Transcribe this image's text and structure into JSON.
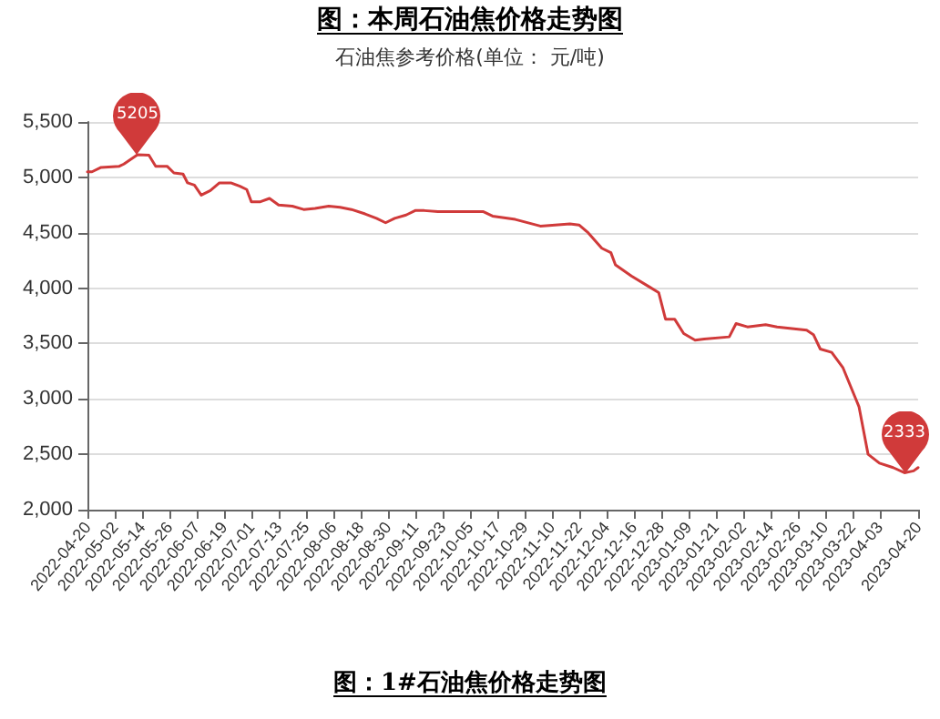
{
  "chart_data": {
    "type": "line",
    "title": "图：本周石油焦价格走势图",
    "subtitle": "石油焦参考价格(单位： 元/吨)",
    "x": [
      "2022-04-20",
      "2022-04-22",
      "2022-04-26",
      "2022-05-04",
      "2022-05-06",
      "2022-05-12",
      "2022-05-17",
      "2022-05-20",
      "2022-05-25",
      "2022-05-28",
      "2022-06-01",
      "2022-06-03",
      "2022-06-06",
      "2022-06-09",
      "2022-06-13",
      "2022-06-17",
      "2022-06-22",
      "2022-06-26",
      "2022-06-29",
      "2022-07-01",
      "2022-07-05",
      "2022-07-09",
      "2022-07-13",
      "2022-07-19",
      "2022-07-24",
      "2022-07-29",
      "2022-08-04",
      "2022-08-09",
      "2022-08-14",
      "2022-08-20",
      "2022-08-25",
      "2022-08-29",
      "2022-09-02",
      "2022-09-07",
      "2022-09-11",
      "2022-09-15",
      "2022-09-21",
      "2022-10-01",
      "2022-10-11",
      "2022-10-15",
      "2022-10-25",
      "2022-11-05",
      "2022-11-18",
      "2022-11-22",
      "2022-11-26",
      "2022-12-02",
      "2022-12-06",
      "2022-12-08",
      "2022-12-15",
      "2022-12-23",
      "2022-12-27",
      "2022-12-30",
      "2023-01-03",
      "2023-01-07",
      "2023-01-12",
      "2023-01-16",
      "2023-01-27",
      "2023-01-30",
      "2023-02-04",
      "2023-02-12",
      "2023-02-17",
      "2023-03-02",
      "2023-03-05",
      "2023-03-08",
      "2023-03-13",
      "2023-03-18",
      "2023-03-24",
      "2023-03-25",
      "2023-03-29",
      "2023-04-03",
      "2023-04-09",
      "2023-04-14",
      "2023-04-18",
      "2023-04-20"
    ],
    "series": [
      {
        "color": "#d03a3a",
        "values": [
          5050,
          5050,
          5090,
          5100,
          5120,
          5205,
          5200,
          5100,
          5100,
          5040,
          5030,
          4950,
          4930,
          4840,
          4880,
          4950,
          4950,
          4920,
          4890,
          4780,
          4780,
          4810,
          4750,
          4740,
          4710,
          4720,
          4740,
          4730,
          4710,
          4670,
          4630,
          4590,
          4630,
          4660,
          4700,
          4700,
          4690,
          4690,
          4690,
          4650,
          4620,
          4560,
          4580,
          4570,
          4500,
          4360,
          4320,
          4210,
          4110,
          4010,
          3960,
          3720,
          3720,
          3590,
          3530,
          3540,
          3560,
          3680,
          3650,
          3670,
          3650,
          3620,
          3580,
          3450,
          3420,
          3280,
          2980,
          2930,
          2500,
          2420,
          2380,
          2333,
          2350,
          2380
        ]
      }
    ],
    "xlim": [
      "2022-04-20",
      "2023-04-20"
    ],
    "xticks": [
      "2022-04-20",
      "2022-05-02",
      "2022-05-14",
      "2022-05-26",
      "2022-06-07",
      "2022-06-19",
      "2022-07-01",
      "2022-07-13",
      "2022-07-25",
      "2022-08-06",
      "2022-08-18",
      "2022-08-30",
      "2022-09-11",
      "2022-09-23",
      "2022-10-05",
      "2022-10-17",
      "2022-10-29",
      "2022-11-10",
      "2022-11-22",
      "2022-12-04",
      "2022-12-16",
      "2022-12-28",
      "2023-01-09",
      "2023-01-21",
      "2023-02-02",
      "2023-02-14",
      "2023-02-26",
      "2023-03-10",
      "2023-03-22",
      "2023-04-03",
      "2023-04-20"
    ],
    "ylim": [
      2000,
      5500
    ],
    "yticks": [
      {
        "value": 2000,
        "label": "2,000"
      },
      {
        "value": 2500,
        "label": "2,500"
      },
      {
        "value": 3000,
        "label": "3,000"
      },
      {
        "value": 3500,
        "label": "3,500"
      },
      {
        "value": 4000,
        "label": "4,000"
      },
      {
        "value": 4500,
        "label": "4,500"
      },
      {
        "value": 5000,
        "label": "5,000"
      },
      {
        "value": 5500,
        "label": "5,500"
      }
    ],
    "grid": "y",
    "marker": "none",
    "line_style": "solid",
    "annotations": [
      {
        "text": "5205",
        "x": "2022-05-12",
        "y": 5205
      },
      {
        "text": "2333",
        "x": "2023-04-14",
        "y": 2333
      },
      "图：1#石油焦价格走势图"
    ]
  }
}
